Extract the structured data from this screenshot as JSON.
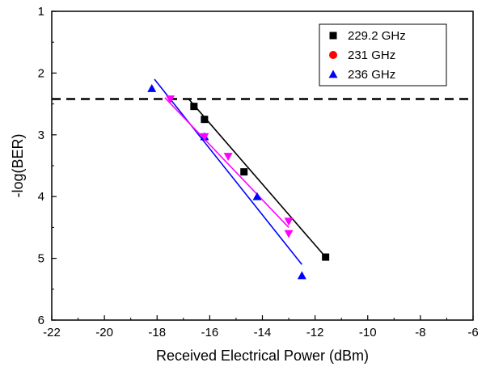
{
  "chart_data": {
    "type": "scatter",
    "xlabel": "Received Electrical Power (dBm)",
    "ylabel": "-log(BER)",
    "xlim": [
      -22,
      -6
    ],
    "ylim": [
      1,
      6
    ],
    "y_inverted": true,
    "x_ticks": [
      -22,
      -20,
      -18,
      -16,
      -14,
      -12,
      -10,
      -8,
      -6
    ],
    "y_ticks": [
      1,
      2,
      3,
      4,
      5,
      6
    ],
    "x_tick_labels": [
      "-22",
      "-20",
      "-18",
      "-16",
      "-14",
      "-12",
      "-10",
      "-8",
      "-6"
    ],
    "y_tick_labels": [
      "1",
      "2",
      "3",
      "4",
      "5",
      "6"
    ],
    "grid": false,
    "legend_position": "top-right",
    "threshold": {
      "y": 2.42,
      "style": "dashed",
      "color": "#000000"
    },
    "series": [
      {
        "name": "229.2 GHz",
        "marker": "square",
        "color": "#000000",
        "points": [
          {
            "x": -16.6,
            "y": 2.54
          },
          {
            "x": -16.2,
            "y": 2.75
          },
          {
            "x": -14.7,
            "y": 3.6
          },
          {
            "x": -11.6,
            "y": 4.98
          }
        ],
        "fit": [
          {
            "x": -16.8,
            "y": 2.42
          },
          {
            "x": -11.6,
            "y": 4.98
          }
        ]
      },
      {
        "name": "231 GHz",
        "marker": "circle",
        "color": "#ff0000",
        "points": [],
        "fit": []
      },
      {
        "name": "236 GHz",
        "marker": "triangle-up",
        "color": "#0000ff",
        "points": [
          {
            "x": -18.2,
            "y": 2.25
          },
          {
            "x": -16.2,
            "y": 3.03
          },
          {
            "x": -14.2,
            "y": 4.0
          },
          {
            "x": -12.5,
            "y": 5.28
          }
        ],
        "fit": [
          {
            "x": -18.1,
            "y": 2.1
          },
          {
            "x": -12.5,
            "y": 5.1
          }
        ]
      }
    ],
    "extra_series": [
      {
        "name": "",
        "color": "#ff00ff",
        "points": [
          {
            "x": -17.5,
            "y": 2.42,
            "marker": "triangle-down"
          },
          {
            "x": -16.2,
            "y": 3.03,
            "marker": "triangle-down"
          },
          {
            "x": -15.3,
            "y": 3.35,
            "marker": "triangle-down"
          },
          {
            "x": -13.0,
            "y": 4.4,
            "marker": "triangle-down"
          },
          {
            "x": -13.0,
            "y": 4.6,
            "marker": "triangle-down"
          }
        ],
        "fit": [
          {
            "x": -17.7,
            "y": 2.4
          },
          {
            "x": -13.0,
            "y": 4.5
          }
        ]
      }
    ]
  }
}
